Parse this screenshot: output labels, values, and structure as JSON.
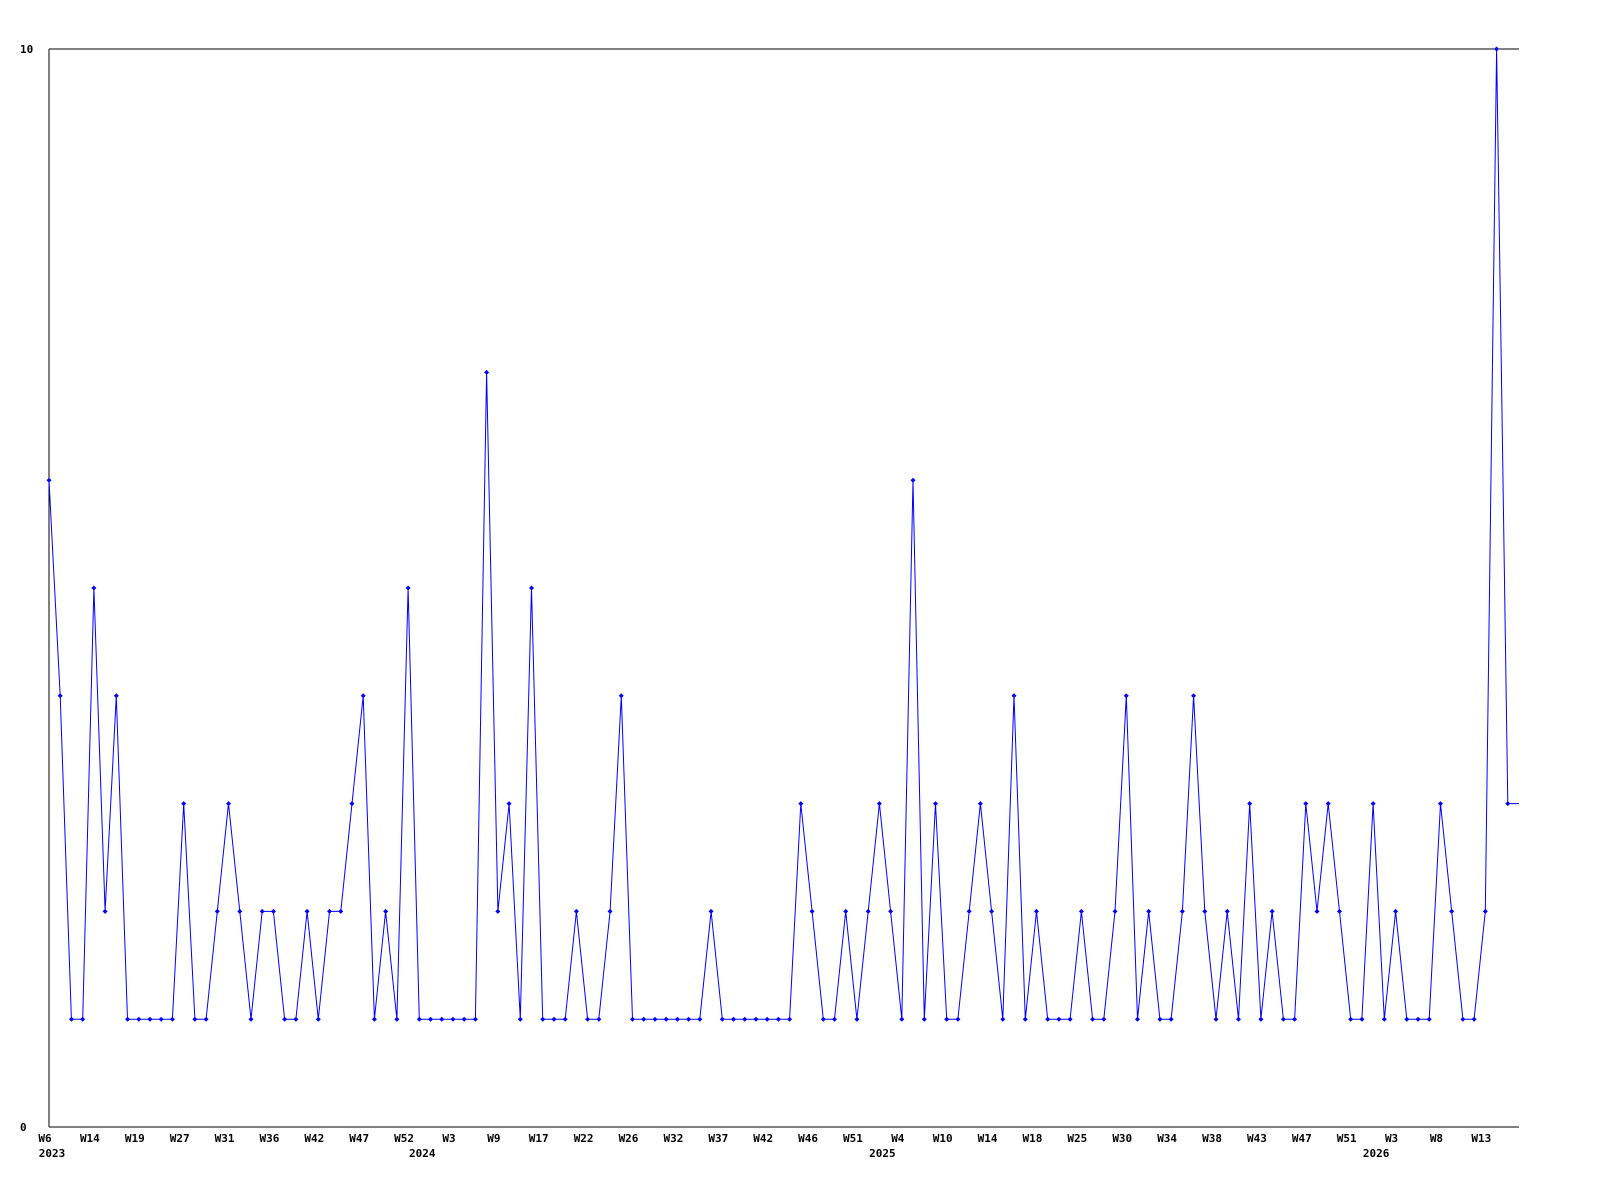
{
  "chart_data": {
    "type": "line",
    "title": "",
    "xlabel": "",
    "ylabel": "",
    "ylim": [
      0,
      10
    ],
    "y_tick_labels": [
      "0",
      "10"
    ],
    "grid": false,
    "line_color": "#0000ff",
    "marker": "diamond",
    "values": [
      6,
      4,
      1,
      1,
      5,
      2,
      4,
      1,
      1,
      1,
      1,
      1,
      3,
      1,
      1,
      2,
      3,
      2,
      1,
      2,
      2,
      1,
      1,
      2,
      1,
      2,
      2,
      3,
      4,
      1,
      2,
      1,
      5,
      1,
      1,
      1,
      1,
      1,
      1,
      7,
      2,
      3,
      1,
      5,
      1,
      1,
      1,
      2,
      1,
      1,
      2,
      4,
      1,
      1,
      1,
      1,
      1,
      1,
      1,
      2,
      1,
      1,
      1,
      1,
      1,
      1,
      1,
      3,
      2,
      1,
      1,
      2,
      1,
      2,
      3,
      2,
      1,
      6,
      1,
      3,
      1,
      1,
      2,
      3,
      2,
      1,
      4,
      1,
      2,
      1,
      1,
      1,
      2,
      1,
      1,
      2,
      4,
      1,
      2,
      1,
      1,
      2,
      4,
      2,
      1,
      2,
      1,
      3,
      1,
      2,
      1,
      1,
      3,
      2,
      3,
      2,
      1,
      1,
      3,
      1,
      2,
      1,
      1,
      1,
      3,
      2,
      1,
      1,
      2,
      10,
      3,
      3
    ],
    "x_tick_every": 4,
    "x_tick_labels": [
      "W6",
      "W14",
      "W19",
      "W27",
      "W31",
      "W36",
      "W42",
      "W47",
      "W52",
      "W3",
      "W9",
      "W17",
      "W22",
      "W26",
      "W32",
      "W37",
      "W42",
      "W46",
      "W51",
      "W4",
      "W10",
      "W14",
      "W18",
      "W25",
      "W30",
      "W34",
      "W38",
      "W43",
      "W47",
      "W51",
      "W3",
      "W8",
      "W13"
    ],
    "year_labels": [
      {
        "text": "2023",
        "point_index": 0
      },
      {
        "text": "2024",
        "point_index": 33
      },
      {
        "text": "2025",
        "point_index": 74
      },
      {
        "text": "2026",
        "point_index": 118
      }
    ]
  }
}
